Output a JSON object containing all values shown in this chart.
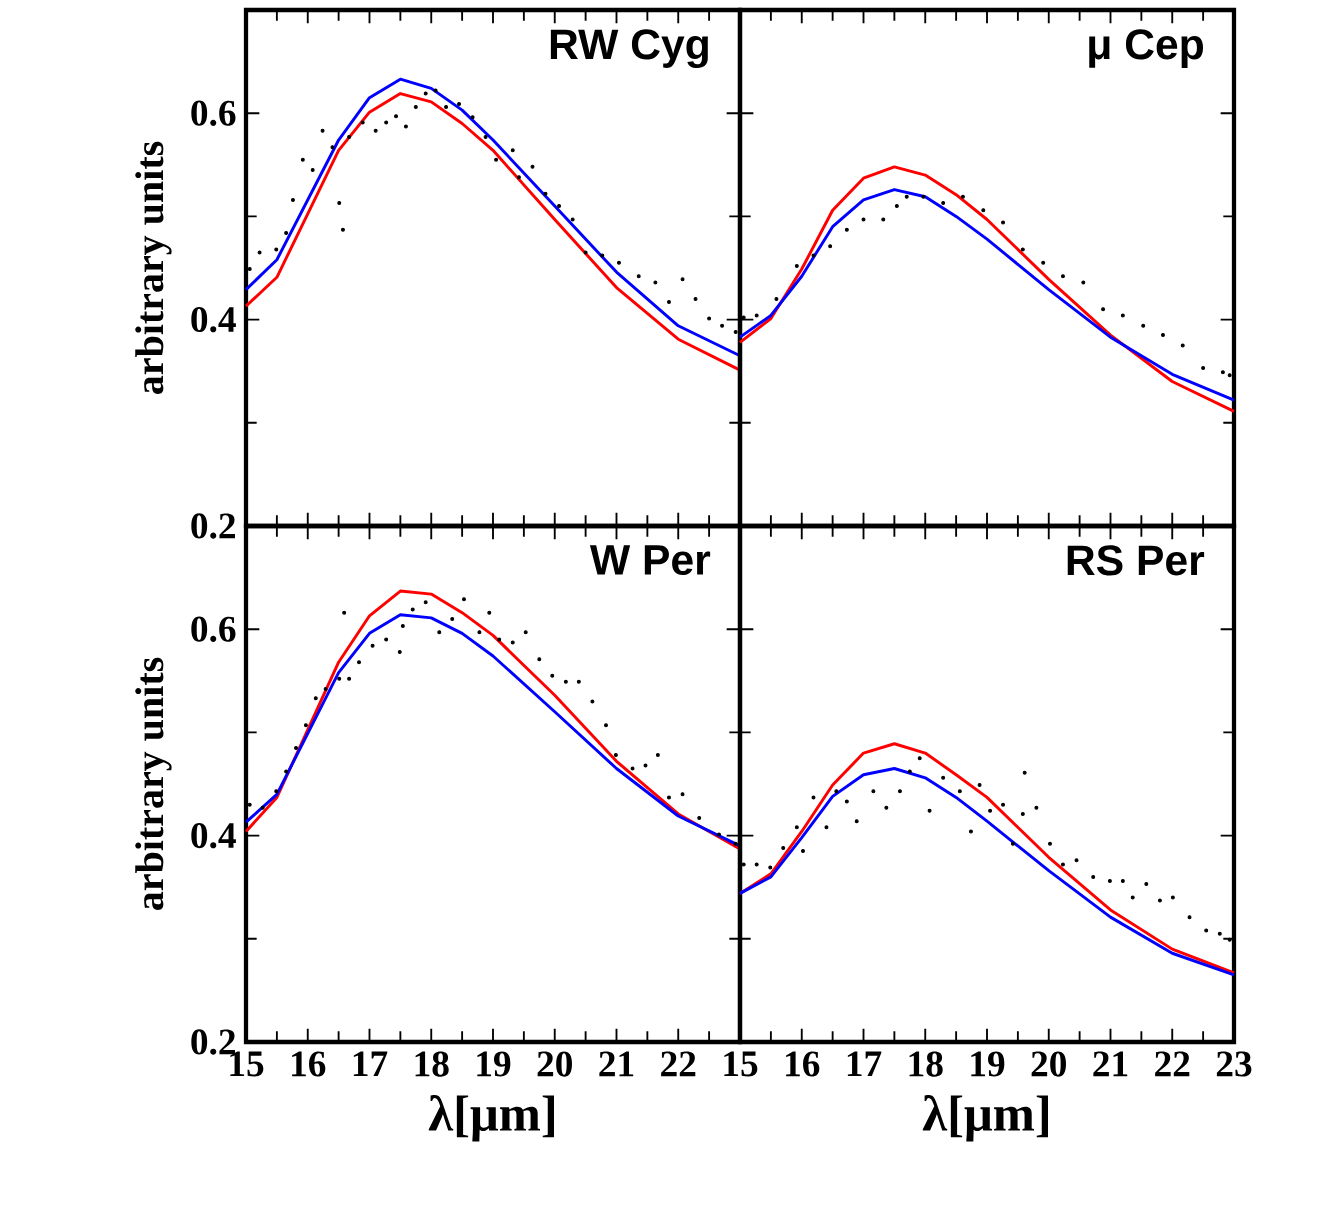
{
  "chart_data": [
    {
      "type": "line",
      "title": "RW Cyg",
      "ylabel": "arbitrary units",
      "xlim": [
        15,
        23
      ],
      "ylim": [
        0.2,
        0.7
      ],
      "xticks": [
        15,
        16,
        17,
        18,
        19,
        20,
        21,
        22,
        {
          "value": 23,
          "label": null
        }
      ],
      "yticks": [
        0.2,
        0.4,
        0.6
      ],
      "tick_labels": "y",
      "series": [
        {
          "type": "scatter",
          "marker": "circle",
          "color": "#000000",
          "x": [
            15.06,
            15.22,
            15.49,
            15.65,
            15.76,
            15.92,
            16.08,
            16.24,
            16.4,
            16.51,
            16.57,
            16.67,
            16.89,
            17.1,
            17.27,
            17.43,
            17.59,
            17.75,
            17.91,
            18.07,
            18.24,
            18.45,
            18.67,
            18.88,
            19.05,
            19.32,
            19.42,
            19.64,
            19.85,
            20.07,
            20.29,
            20.5,
            20.77,
            21.04,
            21.36,
            21.63,
            21.85,
            22.07,
            22.28,
            22.5,
            22.71,
            22.93
          ],
          "values": [
            0.449,
            0.465,
            0.468,
            0.484,
            0.516,
            0.555,
            0.545,
            0.583,
            0.567,
            0.513,
            0.487,
            0.577,
            0.591,
            0.583,
            0.591,
            0.597,
            0.587,
            0.606,
            0.619,
            0.622,
            0.606,
            0.609,
            0.596,
            0.577,
            0.555,
            0.564,
            0.538,
            0.548,
            0.522,
            0.51,
            0.497,
            0.465,
            0.462,
            0.455,
            0.442,
            0.436,
            0.417,
            0.439,
            0.42,
            0.401,
            0.394,
            0.388
          ]
        },
        {
          "color": "#ff0000",
          "x": [
            15,
            15.5,
            16.5,
            17,
            17.5,
            18,
            18.5,
            19,
            20,
            21,
            22,
            23
          ],
          "values": [
            0.413,
            0.441,
            0.564,
            0.601,
            0.619,
            0.611,
            0.59,
            0.564,
            0.497,
            0.431,
            0.381,
            0.351
          ]
        },
        {
          "color": "#0000ff",
          "x": [
            15,
            15.5,
            16.5,
            17,
            17.5,
            18,
            18.5,
            19,
            20,
            21,
            22,
            23
          ],
          "values": [
            0.429,
            0.458,
            0.574,
            0.615,
            0.633,
            0.624,
            0.603,
            0.574,
            0.51,
            0.446,
            0.394,
            0.365
          ]
        }
      ]
    },
    {
      "type": "line",
      "title": "μ Cep",
      "xlim": [
        15,
        23
      ],
      "ylim": [
        0.2,
        0.7
      ],
      "xticks": [
        15,
        16,
        17,
        18,
        19,
        20,
        21,
        22,
        23
      ],
      "yticks": [
        0.2,
        0.4,
        0.6
      ],
      "tick_labels": false,
      "series": [
        {
          "type": "scatter",
          "marker": "circle",
          "color": "#000000",
          "x": [
            15.06,
            15.27,
            15.59,
            15.92,
            16.19,
            16.46,
            16.73,
            17.0,
            17.32,
            17.54,
            17.7,
            17.97,
            18.29,
            18.61,
            18.94,
            19.26,
            19.58,
            19.91,
            20.23,
            20.56,
            20.88,
            21.2,
            21.53,
            21.85,
            22.17,
            22.5,
            22.82,
            22.93
          ],
          "values": [
            0.402,
            0.404,
            0.42,
            0.452,
            0.462,
            0.471,
            0.487,
            0.497,
            0.497,
            0.51,
            0.519,
            0.519,
            0.513,
            0.519,
            0.506,
            0.494,
            0.468,
            0.455,
            0.442,
            0.436,
            0.41,
            0.404,
            0.394,
            0.385,
            0.375,
            0.353,
            0.349,
            0.346
          ]
        },
        {
          "color": "#ff0000",
          "x": [
            15,
            15.5,
            16,
            16.5,
            17,
            17.5,
            18,
            18.5,
            19,
            20,
            21,
            22,
            23
          ],
          "values": [
            0.378,
            0.401,
            0.449,
            0.506,
            0.537,
            0.548,
            0.54,
            0.521,
            0.497,
            0.439,
            0.385,
            0.34,
            0.311
          ]
        },
        {
          "color": "#0000ff",
          "x": [
            15,
            15.5,
            16,
            16.5,
            17,
            17.5,
            18,
            18.5,
            19,
            20,
            21,
            22,
            23
          ],
          "values": [
            0.383,
            0.404,
            0.442,
            0.49,
            0.516,
            0.526,
            0.519,
            0.5,
            0.478,
            0.429,
            0.383,
            0.347,
            0.322
          ]
        }
      ]
    },
    {
      "type": "line",
      "title": "W Per",
      "xlabel": "λ[μm]",
      "ylabel": "arbitrary units",
      "xlim": [
        15,
        23
      ],
      "ylim": [
        0.2,
        0.7
      ],
      "xticks": [
        15,
        16,
        17,
        18,
        19,
        20,
        21,
        22,
        {
          "value": 23,
          "label": null
        }
      ],
      "yticks": [
        0.2,
        0.4,
        0.6
      ],
      "series": [
        {
          "type": "scatter",
          "marker": "circle",
          "color": "#000000",
          "x": [
            15.06,
            15.27,
            15.49,
            15.65,
            15.81,
            15.97,
            16.13,
            16.29,
            16.51,
            16.67,
            16.59,
            16.83,
            17.05,
            17.27,
            17.49,
            17.54,
            17.7,
            17.91,
            18.13,
            18.34,
            18.53,
            18.78,
            18.94,
            19.1,
            19.32,
            19.53,
            19.75,
            19.96,
            20.18,
            20.39,
            20.61,
            20.83,
            20.99,
            21.26,
            21.47,
            21.67,
            21.85,
            22.07,
            22.34,
            22.66,
            22.93
          ],
          "values": [
            0.43,
            0.427,
            0.443,
            0.462,
            0.485,
            0.507,
            0.533,
            0.542,
            0.552,
            0.552,
            0.616,
            0.568,
            0.584,
            0.59,
            0.578,
            0.603,
            0.619,
            0.626,
            0.597,
            0.61,
            0.629,
            0.597,
            0.616,
            0.59,
            0.587,
            0.597,
            0.571,
            0.555,
            0.549,
            0.549,
            0.53,
            0.507,
            0.478,
            0.465,
            0.468,
            0.478,
            0.437,
            0.44,
            0.417,
            0.401,
            0.392
          ]
        },
        {
          "color": "#ff0000",
          "x": [
            15,
            15.5,
            16.5,
            17,
            17.5,
            18,
            18.5,
            19,
            20,
            21,
            22,
            23
          ],
          "values": [
            0.404,
            0.437,
            0.568,
            0.613,
            0.637,
            0.634,
            0.616,
            0.594,
            0.536,
            0.472,
            0.421,
            0.387
          ]
        },
        {
          "color": "#0000ff",
          "x": [
            15,
            15.5,
            16.5,
            17,
            17.5,
            18,
            18.5,
            19,
            20,
            21,
            22,
            23
          ],
          "values": [
            0.413,
            0.44,
            0.558,
            0.596,
            0.614,
            0.611,
            0.596,
            0.574,
            0.52,
            0.465,
            0.419,
            0.39
          ]
        }
      ]
    },
    {
      "type": "line",
      "title": "RS Per",
      "xlabel": "λ[μm]",
      "xlim": [
        15,
        23
      ],
      "ylim": [
        0.2,
        0.7
      ],
      "xticks": [
        15,
        16,
        17,
        18,
        19,
        20,
        21,
        22,
        23
      ],
      "yticks": [
        0.2,
        0.4,
        0.6
      ],
      "tick_labels": "x",
      "series": [
        {
          "type": "scatter",
          "marker": "circle",
          "color": "#000000",
          "x": [
            15.06,
            15.27,
            15.49,
            15.7,
            15.92,
            16.02,
            16.19,
            16.4,
            16.56,
            16.73,
            16.89,
            17.16,
            17.37,
            17.59,
            17.75,
            17.91,
            18.07,
            18.29,
            18.56,
            18.74,
            18.88,
            19.05,
            19.26,
            19.42,
            19.58,
            19.61,
            19.8,
            20.02,
            20.23,
            20.45,
            20.72,
            20.99,
            21.2,
            21.36,
            21.58,
            21.8,
            22.01,
            22.28,
            22.55,
            22.77,
            22.93
          ],
          "values": [
            0.372,
            0.372,
            0.369,
            0.388,
            0.408,
            0.385,
            0.437,
            0.408,
            0.443,
            0.433,
            0.414,
            0.443,
            0.427,
            0.443,
            0.462,
            0.475,
            0.424,
            0.456,
            0.443,
            0.404,
            0.449,
            0.424,
            0.43,
            0.392,
            0.421,
            0.461,
            0.427,
            0.392,
            0.372,
            0.376,
            0.36,
            0.356,
            0.356,
            0.34,
            0.353,
            0.337,
            0.34,
            0.321,
            0.308,
            0.305,
            0.299
          ]
        },
        {
          "color": "#ff0000",
          "x": [
            15,
            15.5,
            16,
            16.5,
            17,
            17.5,
            18,
            18.5,
            19,
            20,
            21,
            22,
            23
          ],
          "values": [
            0.344,
            0.363,
            0.404,
            0.449,
            0.48,
            0.489,
            0.48,
            0.459,
            0.437,
            0.379,
            0.328,
            0.29,
            0.267
          ]
        },
        {
          "color": "#0000ff",
          "x": [
            15,
            15.5,
            16,
            16.5,
            17,
            17.5,
            18,
            18.5,
            19,
            20,
            21,
            22,
            23
          ],
          "values": [
            0.344,
            0.36,
            0.398,
            0.438,
            0.459,
            0.465,
            0.456,
            0.437,
            0.414,
            0.366,
            0.321,
            0.286,
            0.265
          ]
        }
      ]
    }
  ]
}
